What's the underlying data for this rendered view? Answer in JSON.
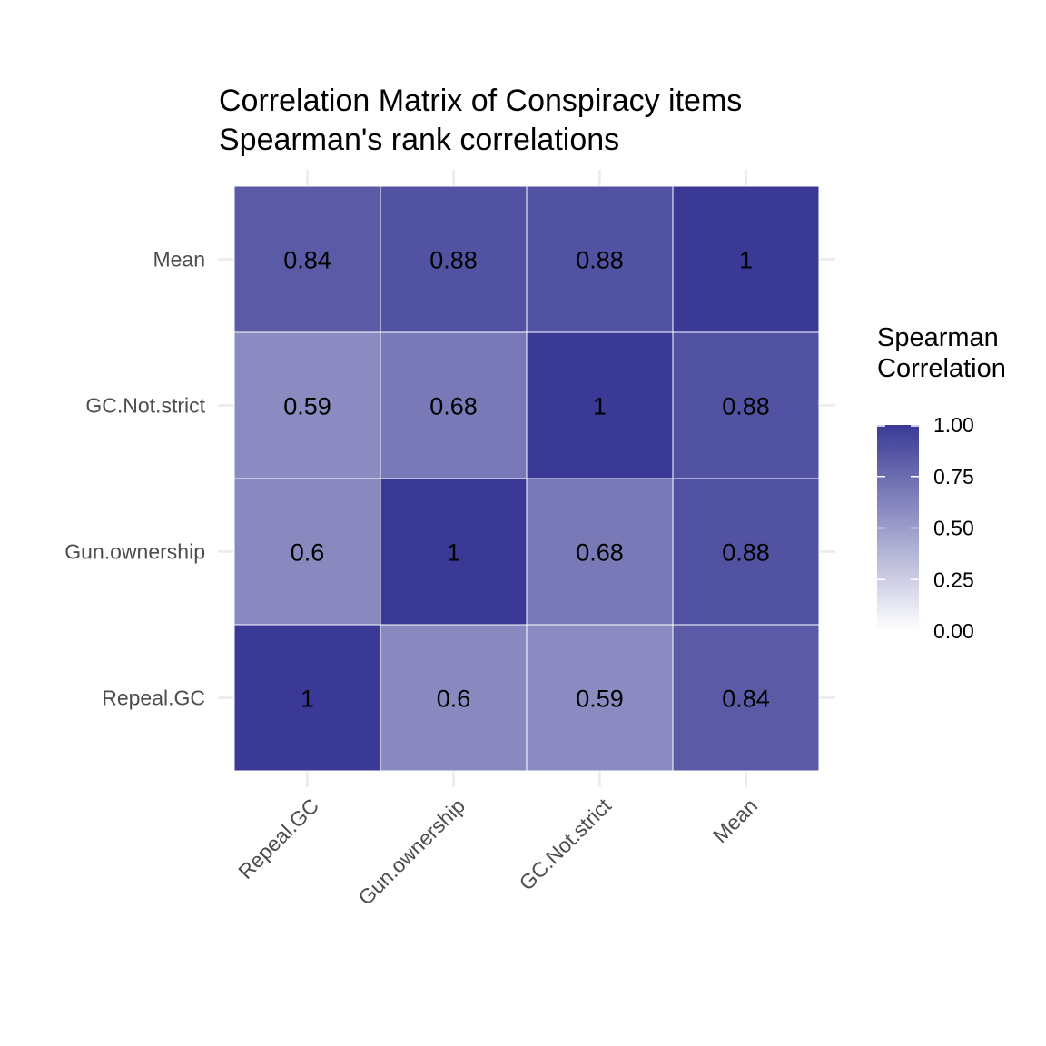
{
  "chart_data": {
    "type": "heatmap",
    "title": "Correlation Matrix of Conspiracy items",
    "subtitle": "Spearman's rank correlations",
    "x_categories": [
      "Repeal.GC",
      "Gun.ownership",
      "GC.Not.strict",
      "Mean"
    ],
    "y_categories": [
      "Repeal.GC",
      "Gun.ownership",
      "GC.Not.strict",
      "Mean"
    ],
    "values": [
      [
        1,
        0.6,
        0.59,
        0.84
      ],
      [
        0.6,
        1,
        0.68,
        0.88
      ],
      [
        0.59,
        0.68,
        1,
        0.88
      ],
      [
        0.84,
        0.88,
        0.88,
        1
      ]
    ],
    "cell_labels": [
      [
        "1",
        "0.6",
        "0.59",
        "0.84"
      ],
      [
        "0.6",
        "1",
        "0.68",
        "0.88"
      ],
      [
        "0.59",
        "0.68",
        "1",
        "0.88"
      ],
      [
        "0.84",
        "0.88",
        "0.88",
        "1"
      ]
    ],
    "legend": {
      "title_lines": [
        "Spearman",
        "Correlation"
      ],
      "range": [
        0,
        1
      ],
      "ticks": [
        1.0,
        0.75,
        0.5,
        0.25,
        0.0
      ],
      "tick_labels": [
        "1.00",
        "0.75",
        "0.50",
        "0.25",
        "0.00"
      ],
      "low_color": "#ffffff",
      "high_color": "#3a3a96",
      "placement": "right"
    },
    "grid": true
  }
}
